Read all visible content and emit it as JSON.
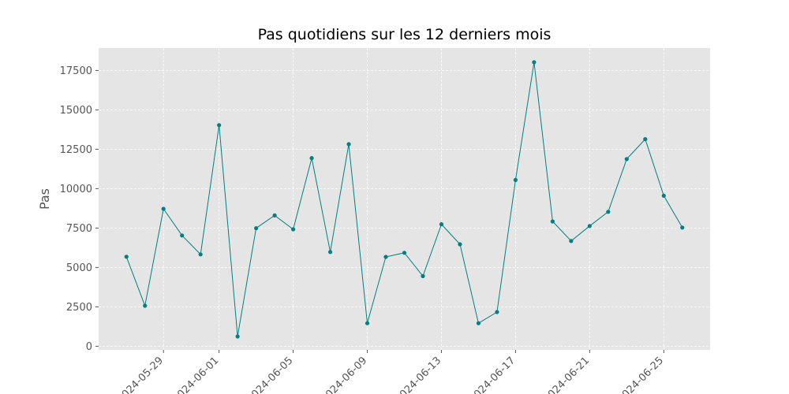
{
  "chart_data": {
    "type": "line",
    "title": "Pas quotidiens sur les 12 derniers mois",
    "xlabel": "",
    "ylabel": "Pas",
    "x": [
      "2024-05-27",
      "2024-05-28",
      "2024-05-29",
      "2024-05-30",
      "2024-05-31",
      "2024-06-01",
      "2024-06-02",
      "2024-06-03",
      "2024-06-04",
      "2024-06-05",
      "2024-06-06",
      "2024-06-07",
      "2024-06-08",
      "2024-06-09",
      "2024-06-10",
      "2024-06-11",
      "2024-06-12",
      "2024-06-13",
      "2024-06-14",
      "2024-06-15",
      "2024-06-16",
      "2024-06-17",
      "2024-06-18",
      "2024-06-19",
      "2024-06-20",
      "2024-06-21",
      "2024-06-22",
      "2024-06-23",
      "2024-06-24",
      "2024-06-25",
      "2024-06-26"
    ],
    "series": [
      {
        "values": [
          5680,
          2570,
          8720,
          7030,
          5830,
          14030,
          620,
          7490,
          8300,
          7420,
          11940,
          5980,
          12820,
          1460,
          5670,
          5930,
          4450,
          7740,
          6470,
          1460,
          2170,
          10550,
          18020,
          7920,
          6680,
          7630,
          8530,
          11880,
          13140,
          9550,
          7530
        ]
      }
    ],
    "xticks": [
      "2024-05-29",
      "2024-06-01",
      "2024-06-05",
      "2024-06-09",
      "2024-06-13",
      "2024-06-17",
      "2024-06-21",
      "2024-06-25"
    ],
    "yticks": [
      0,
      2500,
      5000,
      7500,
      10000,
      12500,
      15000,
      17500
    ],
    "ytick_labels": [
      "0",
      "2500",
      "5000",
      "7500",
      "10000",
      "12500",
      "15000",
      "17500"
    ],
    "xlim": [
      "2024-05-25T12:00",
      "2024-06-27T12:00"
    ],
    "ylim": [
      -230,
      18920
    ],
    "grid": true,
    "colors": {
      "line": "#008080",
      "background": "#e5e5e5",
      "grid": "#ffffff",
      "tick_text": "#555555"
    }
  }
}
